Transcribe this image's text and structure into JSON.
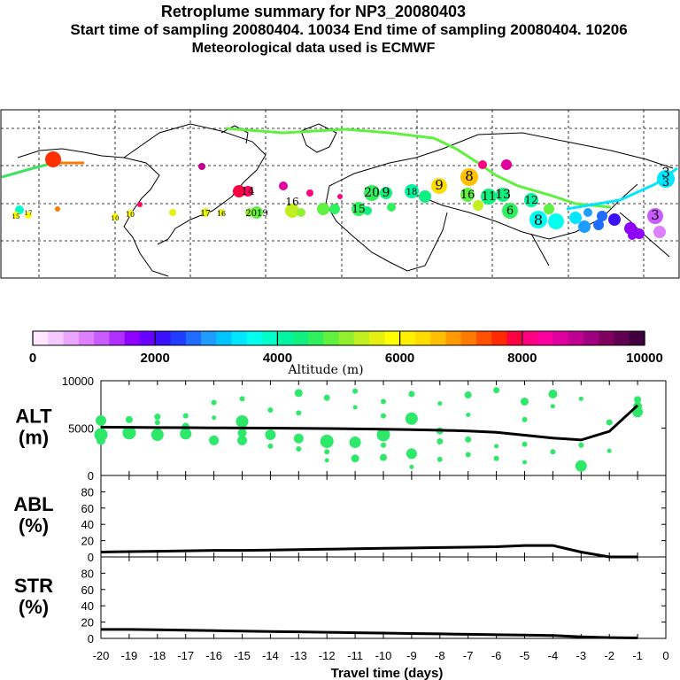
{
  "header": {
    "title": "Retroplume summary for NP3_20080403",
    "sampling": "Start time of sampling 20080404. 10034     End time of sampling 20080404. 10206",
    "met": "Meteorological data used is ECMWF"
  },
  "colorbar": {
    "label": "Altitude (m)",
    "ticks": [
      "0",
      "2000",
      "4000",
      "6000",
      "8000",
      "10000"
    ],
    "colors": [
      "#ffe6ff",
      "#f5c8ff",
      "#eaa6ff",
      "#dd7fff",
      "#c95cff",
      "#b030ff",
      "#8f00ff",
      "#6a00ff",
      "#3a10ff",
      "#1f3cff",
      "#1f6cff",
      "#1f9cff",
      "#00c4ff",
      "#00e6ff",
      "#00ffee",
      "#00ffc8",
      "#00f5a0",
      "#10f080",
      "#30f060",
      "#60f040",
      "#90f030",
      "#c0f020",
      "#e6f010",
      "#ffff00",
      "#fff000",
      "#ffdc00",
      "#ffc000",
      "#ff9a00",
      "#ff7a00",
      "#ff5000",
      "#ff2a00",
      "#ff0040",
      "#ff0080",
      "#ff00a0",
      "#e000a0",
      "#c00090",
      "#a00080",
      "#800060",
      "#600050",
      "#400040"
    ]
  },
  "map": {
    "labels": [
      {
        "t": "3",
        "c": "#00e6ff"
      },
      {
        "t": "3",
        "c": "#00e6ff"
      },
      {
        "t": "8",
        "c": "#ffc000"
      },
      {
        "t": "9",
        "c": "#ffdc00"
      },
      {
        "t": "20",
        "c": "#10f080"
      },
      {
        "t": "9",
        "c": "#10f080"
      },
      {
        "t": "16",
        "c": "#60f040"
      },
      {
        "t": "13",
        "c": "#10f080"
      },
      {
        "t": "15",
        "c": "#30f060"
      },
      {
        "t": "14",
        "c": "#e000a0"
      },
      {
        "t": "2019",
        "c": "#60f040"
      },
      {
        "t": "17",
        "c": "#e6f010"
      },
      {
        "t": "16",
        "c": "#e6f010"
      },
      {
        "t": "10",
        "c": "#c0f020"
      },
      {
        "t": "16",
        "c": "#60f040"
      },
      {
        "t": "11",
        "c": "#30f060"
      },
      {
        "t": "12",
        "c": "#00f5a0"
      },
      {
        "t": "8",
        "c": "#00ffee"
      },
      {
        "t": "6",
        "c": "#30f060"
      },
      {
        "t": "3",
        "c": "#b030ff"
      },
      {
        "t": "15",
        "c": "#ffff00"
      },
      {
        "t": "17",
        "c": "#ffff00"
      },
      {
        "t": "10",
        "c": "#ffff00"
      },
      {
        "t": "18",
        "c": "#10f080"
      }
    ]
  },
  "chart_data": [
    {
      "type": "scatter",
      "panel": "ALT",
      "ylabel": "ALT\n(m)",
      "ylabel_lines": [
        "ALT",
        "(m)"
      ],
      "ylim": [
        0,
        10000
      ],
      "yticks": [
        "10000",
        "5000",
        "0"
      ],
      "ytick_values": [
        10000,
        5000,
        0
      ],
      "xlim": [
        -20,
        0
      ],
      "line": {
        "x": [
          -20,
          -19,
          -18,
          -17,
          -16,
          -15,
          -14,
          -13,
          -12,
          -11,
          -10,
          -9,
          -8,
          -7,
          -6,
          -5,
          -4,
          -3,
          -2,
          -1
        ],
        "y": [
          5100,
          5080,
          5060,
          5050,
          5030,
          5010,
          5000,
          4980,
          4950,
          4920,
          4880,
          4840,
          4780,
          4700,
          4560,
          4250,
          3950,
          3750,
          4650,
          7400
        ]
      },
      "points": {
        "x": [
          -20,
          -20,
          -20,
          -19,
          -19,
          -18,
          -18,
          -18,
          -17,
          -17,
          -17,
          -16,
          -16,
          -16,
          -15,
          -15,
          -15,
          -15,
          -14,
          -14,
          -14,
          -13,
          -13,
          -13,
          -13,
          -12,
          -12,
          -12,
          -12,
          -11,
          -11,
          -11,
          -11,
          -10,
          -10,
          -10,
          -10,
          -10,
          -9,
          -9,
          -9,
          -9,
          -8,
          -8,
          -8,
          -8,
          -7,
          -7,
          -7,
          -7,
          -6,
          -6,
          -6,
          -5,
          -5,
          -5,
          -5,
          -4,
          -4,
          -4,
          -3,
          -3,
          -3,
          -2,
          -2,
          -1,
          -1,
          -1
        ],
        "y": [
          5800,
          4300,
          3700,
          5900,
          4500,
          6200,
          5600,
          4300,
          6300,
          5200,
          4400,
          7700,
          6100,
          3700,
          8100,
          5700,
          4500,
          3700,
          6900,
          4300,
          3100,
          8700,
          6600,
          3900,
          2800,
          8200,
          3600,
          2500,
          1600,
          8900,
          7200,
          3500,
          1800,
          7800,
          6300,
          4300,
          3200,
          1900,
          8600,
          6000,
          2300,
          900,
          7600,
          4700,
          3600,
          1700,
          8500,
          6400,
          3800,
          2200,
          9000,
          3100,
          1800,
          7800,
          5900,
          3300,
          1400,
          8600,
          7300,
          2500,
          8100,
          3200,
          1000,
          5600,
          2600,
          8000,
          7300,
          6700
        ],
        "s": [
          9,
          12,
          7,
          5,
          12,
          4,
          3,
          11,
          3,
          5,
          10,
          3,
          2,
          8,
          3,
          11,
          7,
          8,
          3,
          9,
          3,
          6,
          3,
          8,
          3,
          4,
          12,
          3,
          2,
          3,
          2,
          10,
          6,
          3,
          3,
          12,
          3,
          5,
          4,
          11,
          9,
          2,
          2,
          5,
          4,
          3,
          5,
          2,
          4,
          3,
          4,
          2,
          3,
          6,
          3,
          3,
          2,
          7,
          2,
          3,
          2,
          3,
          10,
          4,
          2,
          5,
          7,
          9
        ]
      }
    },
    {
      "type": "line",
      "panel": "ABL",
      "ylabel": "ABL\n(%)",
      "ylabel_lines": [
        "ABL",
        "(%)"
      ],
      "ylim": [
        0,
        100
      ],
      "yticks": [
        "80",
        "60",
        "40",
        "20",
        "0"
      ],
      "ytick_values": [
        80,
        60,
        40,
        20,
        0
      ],
      "x": [
        -20,
        -19,
        -18,
        -17,
        -16,
        -15,
        -14,
        -13,
        -12,
        -11,
        -10,
        -9,
        -8,
        -7,
        -6,
        -5,
        -4,
        -3,
        -2,
        -1
      ],
      "y": [
        6,
        6.5,
        7,
        7.5,
        8,
        8,
        8.5,
        9,
        9.5,
        10,
        10.5,
        11,
        11.5,
        12,
        12.5,
        14,
        14,
        6,
        0,
        0
      ]
    },
    {
      "type": "line",
      "panel": "STR",
      "ylabel": "STR\n(%)",
      "ylabel_lines": [
        "STR",
        "(%)"
      ],
      "ylim": [
        0,
        100
      ],
      "yticks": [
        "80",
        "60",
        "40",
        "20",
        "0"
      ],
      "ytick_values": [
        80,
        60,
        40,
        20,
        0
      ],
      "xlabel": "Travel time (days)",
      "xticks": [
        "-20",
        "-19",
        "-18",
        "-17",
        "-16",
        "-15",
        "-14",
        "-13",
        "-12",
        "-11",
        "-10",
        "-9",
        "-8",
        "-7",
        "-6",
        "-5",
        "-4",
        "-3",
        "-2",
        "-1",
        "0"
      ],
      "xtick_values": [
        -20,
        -19,
        -18,
        -17,
        -16,
        -15,
        -14,
        -13,
        -12,
        -11,
        -10,
        -9,
        -8,
        -7,
        -6,
        -5,
        -4,
        -3,
        -2,
        -1,
        0
      ],
      "x": [
        -20,
        -19,
        -18,
        -17,
        -16,
        -15,
        -14,
        -13,
        -12,
        -11,
        -10,
        -9,
        -8,
        -7,
        -6,
        -5,
        -4,
        -3,
        -2,
        -1
      ],
      "y": [
        11,
        11,
        10.5,
        10,
        9.5,
        9,
        8.5,
        8,
        7.5,
        7,
        6.5,
        6,
        5.5,
        5,
        4.5,
        4,
        3.5,
        2,
        1,
        0.5
      ]
    }
  ]
}
